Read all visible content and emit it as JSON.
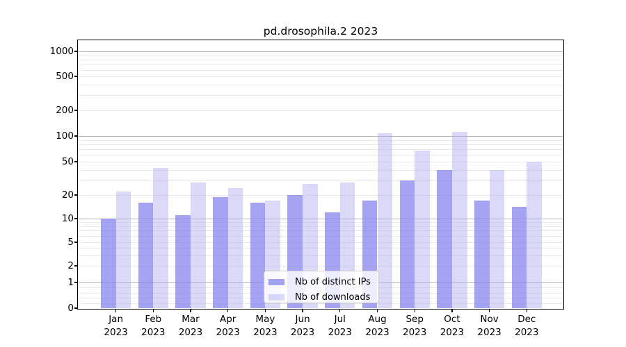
{
  "title": "pd.drosophila.2 2023",
  "chart_data": {
    "type": "bar",
    "title": "pd.drosophila.2 2023",
    "categories": [
      "Jan 2023",
      "Feb 2023",
      "Mar 2023",
      "Apr 2023",
      "May 2023",
      "Jun 2023",
      "Jul 2023",
      "Aug 2023",
      "Sep 2023",
      "Oct 2023",
      "Nov 2023",
      "Dec 2023"
    ],
    "series": [
      {
        "name": "Nb of distinct IPs",
        "color": "#a5a5f2",
        "values": [
          10,
          16,
          11,
          19,
          16,
          20,
          12,
          17,
          30,
          40,
          17,
          14
        ]
      },
      {
        "name": "Nb of downloads",
        "color": "#dadaf8",
        "values": [
          22,
          42,
          28,
          24,
          17,
          27,
          28,
          108,
          68,
          112,
          40,
          50
        ]
      }
    ],
    "xlabel": "",
    "ylabel": "",
    "yscale": "symlog",
    "ylim": [
      0,
      1300
    ],
    "yticks": [
      {
        "label": "1000",
        "value": 1000
      },
      {
        "label": "500",
        "value": 500
      },
      {
        "label": "200",
        "value": 200
      },
      {
        "label": "100",
        "value": 100
      },
      {
        "label": "50",
        "value": 50
      },
      {
        "label": "20",
        "value": 20
      },
      {
        "label": "10",
        "value": 10
      },
      {
        "label": "5",
        "value": 5
      },
      {
        "label": "2",
        "value": 2
      },
      {
        "label": "1",
        "value": 1
      },
      {
        "label": "0",
        "value": 0
      }
    ],
    "grid": "horizontal major+minor",
    "legend_position": "lower center"
  },
  "legend": {
    "items": [
      {
        "label": "Nb of distinct IPs"
      },
      {
        "label": "Nb of downloads"
      }
    ]
  },
  "colors": {
    "bar_distinct_ips_fill": "rgba(126,126,236,0.70)",
    "bar_downloads_fill": "rgba(173,173,239,0.45)",
    "grid_major": "#b3b3b3",
    "grid_minor": "#eaeaea",
    "axis": "#000000"
  }
}
